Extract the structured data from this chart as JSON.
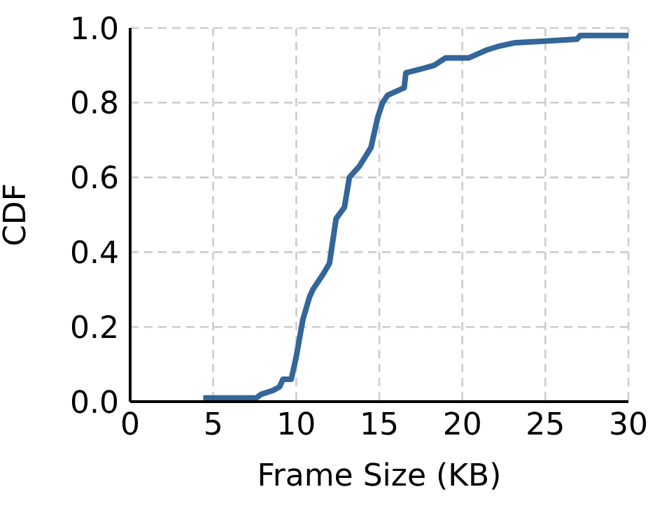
{
  "chart_data": {
    "type": "line",
    "xlabel": "Frame Size (KB)",
    "ylabel": "CDF",
    "x": [
      4.4,
      7.6,
      7.9,
      8.6,
      9.0,
      9.2,
      9.7,
      10.0,
      10.4,
      10.8,
      11.0,
      11.6,
      12.0,
      12.4,
      12.9,
      13.2,
      13.8,
      14.5,
      14.9,
      15.2,
      15.5,
      16.5,
      16.6,
      17.5,
      18.3,
      19.0,
      20.4,
      21.4,
      22.1,
      23.1,
      26.9,
      27.1,
      30
    ],
    "series": [
      {
        "color": "#336699",
        "values": [
          0.01,
          0.01,
          0.02,
          0.03,
          0.04,
          0.06,
          0.06,
          0.12,
          0.22,
          0.28,
          0.3,
          0.34,
          0.37,
          0.49,
          0.52,
          0.6,
          0.63,
          0.68,
          0.76,
          0.8,
          0.82,
          0.84,
          0.88,
          0.89,
          0.9,
          0.92,
          0.92,
          0.94,
          0.95,
          0.96,
          0.97,
          0.98,
          0.98
        ]
      }
    ],
    "xlim": [
      0,
      30
    ],
    "xticks": [
      0,
      5,
      10,
      15,
      20,
      25,
      30
    ],
    "ylim": [
      0,
      1
    ],
    "yticks": [
      {
        "value": 0,
        "label": "0.0"
      },
      {
        "value": 0.2,
        "label": "0.2"
      },
      {
        "value": 0.4,
        "label": "0.4"
      },
      {
        "value": 0.6,
        "label": "0.6"
      },
      {
        "value": 0.8,
        "label": "0.8"
      },
      {
        "value": 1,
        "label": "1.0"
      }
    ],
    "grid": true,
    "marker": "none",
    "line_style": "solid"
  }
}
